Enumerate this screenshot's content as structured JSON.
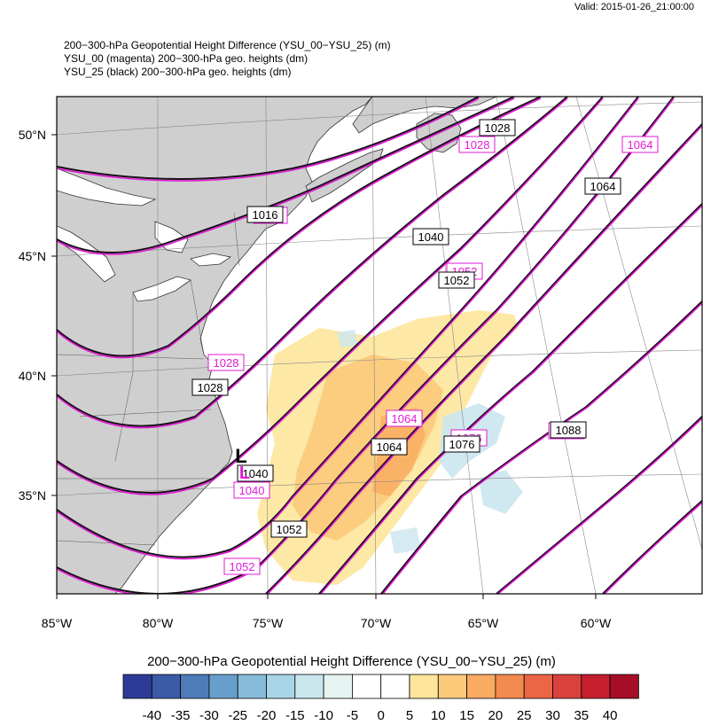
{
  "valid_time": "Valid: 2015-01-26_21:00:00",
  "titles": [
    "200−300-hPa Geopotential Height Difference (YSU_00−YSU_25)   (m)",
    "YSU_00 (magenta) 200−300-hPa geo. heights   (dm)",
    "YSU_25 (black) 200−300-hPa geo. heights   (dm)"
  ],
  "lat_labels": [
    "50°N",
    "45°N",
    "40°N",
    "35°N"
  ],
  "lon_labels": [
    "85°W",
    "80°W",
    "75°W",
    "70°W",
    "65°W",
    "60°W"
  ],
  "contour_labels_black": [
    "1016",
    "1028",
    "1028",
    "1040",
    "1040",
    "1052",
    "1052",
    "1064",
    "1064",
    "1076",
    "1088"
  ],
  "contour_labels_magenta": [
    "1016",
    "1028",
    "1028",
    "1040",
    "1052",
    "1052",
    "1064",
    "1064",
    "1076",
    "1088"
  ],
  "colorbar": {
    "title": "200−300-hPa Geopotential Height Difference (YSU_00−YSU_25)  (m)",
    "labels": [
      "-40",
      "-35",
      "-30",
      "-25",
      "-20",
      "-15",
      "-10",
      "-5",
      "0",
      "5",
      "10",
      "15",
      "20",
      "25",
      "30",
      "35",
      "40"
    ],
    "colors": [
      "#2c3c96",
      "#3b5aa8",
      "#4d7cb9",
      "#679fcc",
      "#86bbd9",
      "#a8d5e5",
      "#c9e7ed",
      "#e6f4f1",
      "#ffffff",
      "#ffffff",
      "#fde59b",
      "#fcc97b",
      "#f9ab62",
      "#f38a4f",
      "#ea6645",
      "#d9413b",
      "#c41e2f",
      "#a60d27"
    ]
  },
  "colors": {
    "land": "#cfcfcf",
    "ocean": "#ffffff",
    "black_contour": "#1a0d1a",
    "magenta_contour": "#e11ad5",
    "positive_fill": "#fbcc80",
    "negative_fill": "#cbe6ee"
  },
  "station_marker": "L"
}
